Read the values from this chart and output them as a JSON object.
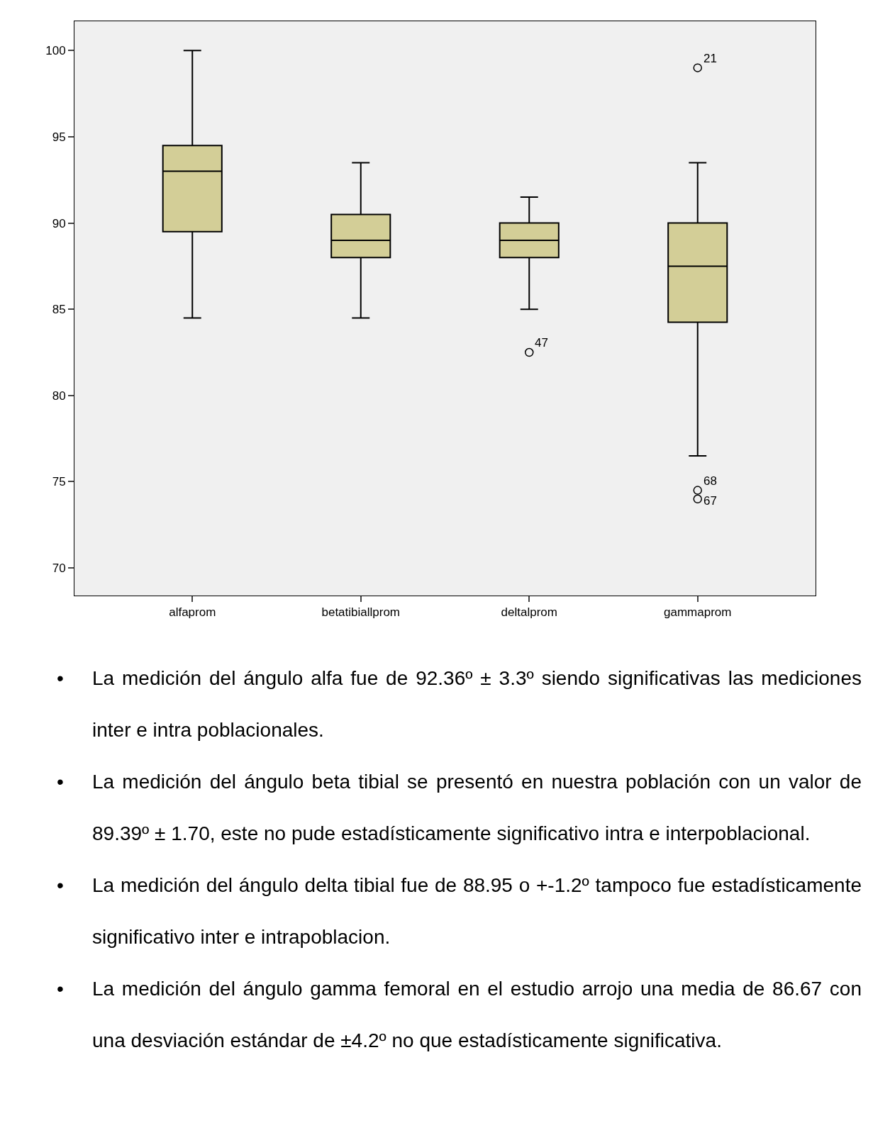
{
  "chart_data": {
    "type": "box",
    "categories": [
      "alfaprom",
      "betatibiallprom",
      "deltalprom",
      "gammaprom"
    ],
    "color": "#d3ce97",
    "boxes": [
      {
        "low": 84.5,
        "q1": 89.5,
        "median": 93,
        "q3": 94.5,
        "high": 100
      },
      {
        "low": 84.5,
        "q1": 88,
        "median": 89,
        "q3": 90.5,
        "high": 93.5
      },
      {
        "low": 85,
        "q1": 88,
        "median": 89,
        "q3": 90,
        "high": 91.5,
        "outliers": [
          82.5
        ]
      },
      {
        "low": 76.5,
        "q1": 84.25,
        "median": 87.5,
        "q3": 90,
        "high": 93.5,
        "outliers": [
          99,
          74.5,
          74
        ]
      }
    ],
    "ylim": [
      68.4,
      101.7
    ],
    "yticks": [
      70,
      75,
      80,
      85,
      90,
      95,
      100
    ],
    "grid": false,
    "annotations": [
      "47",
      "21",
      "68",
      "67",
      "• La medición del ángulo alfa fue de 92.36º ± 3.3º siendo significativas las mediciones inter e intra poblacionales.",
      "• La medición del ángulo beta tibial se presentó en nuestra población con un valor de 89.39º ± 1.70, este no pude estadísticamente significativo intra e interpoblacional.",
      "• La medición del ángulo delta tibial fue de 88.95 o +-1.2º tampoco fue estadísticamente significativo inter e intrapoblacion.",
      "• La medición del ángulo gamma femoral en el estudio arrojo una media de 86.67 con una desviación estándar de  ±4.2º no que estadísticamente significativa."
    ]
  }
}
